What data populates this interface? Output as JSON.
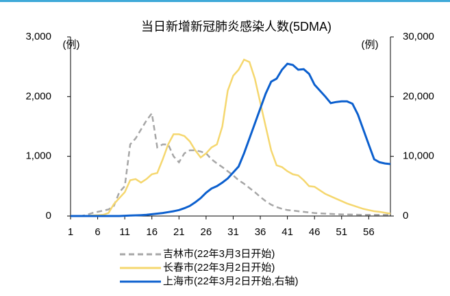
{
  "chart_data": {
    "type": "line",
    "title": "当日新增新冠肺炎感染人数(5DMA)",
    "y_unit": "(例)",
    "y2_unit": "(例)",
    "x": [
      1,
      2,
      3,
      4,
      5,
      6,
      7,
      8,
      9,
      10,
      11,
      12,
      13,
      14,
      15,
      16,
      17,
      18,
      19,
      20,
      21,
      22,
      23,
      24,
      25,
      26,
      27,
      28,
      29,
      30,
      31,
      32,
      33,
      34,
      35,
      36,
      37,
      38,
      39,
      40,
      41,
      42,
      43,
      44,
      45,
      46,
      47,
      48,
      49,
      50,
      51,
      52,
      53,
      54,
      55,
      56,
      57,
      58,
      59,
      60
    ],
    "xlim": [
      1,
      60
    ],
    "xticks": [
      1,
      6,
      11,
      16,
      21,
      26,
      31,
      36,
      41,
      46,
      51,
      56
    ],
    "ylim": [
      0,
      3000
    ],
    "yticks": [
      0,
      {
        "value": 1000,
        "label": "1,000"
      },
      {
        "value": 2000,
        "label": "2,000"
      },
      {
        "value": 3000,
        "label": "3,000"
      }
    ],
    "y2lim": [
      0,
      30000
    ],
    "y2ticks": [
      0,
      {
        "value": 10000,
        "label": "10,000"
      },
      {
        "value": 20000,
        "label": "20,000"
      },
      {
        "value": 30000,
        "label": "30,000"
      }
    ],
    "series": [
      {
        "name": "吉林市(22年3月3日开始)",
        "color": "#a6a6a6",
        "dash": true,
        "values": [
          0,
          0,
          0,
          20,
          50,
          70,
          90,
          110,
          170,
          400,
          500,
          1200,
          1300,
          1450,
          1600,
          1720,
          1150,
          1200,
          1200,
          1000,
          900,
          1050,
          1100,
          1100,
          1080,
          1050,
          950,
          880,
          820,
          750,
          680,
          600,
          540,
          470,
          400,
          320,
          250,
          190,
          150,
          120,
          100,
          90,
          80,
          70,
          60,
          50,
          45,
          40,
          35,
          30,
          28,
          26,
          24,
          22,
          20,
          20,
          20,
          20,
          20,
          20
        ]
      },
      {
        "name": "长春市(22年3月2日开始)",
        "color": "#f5d76e",
        "dash": false,
        "values": [
          0,
          0,
          0,
          0,
          10,
          15,
          20,
          50,
          200,
          300,
          400,
          600,
          620,
          560,
          620,
          700,
          720,
          950,
          1200,
          1370,
          1370,
          1340,
          1250,
          1100,
          980,
          1050,
          1150,
          1200,
          1500,
          2100,
          2350,
          2450,
          2620,
          2580,
          2300,
          1900,
          1500,
          1100,
          850,
          820,
          750,
          700,
          680,
          600,
          500,
          490,
          430,
          370,
          330,
          290,
          250,
          210,
          180,
          150,
          120,
          100,
          80,
          70,
          55,
          40
        ]
      },
      {
        "name": "上海市(22年3月2日开始,右轴)",
        "color": "#0b5fce",
        "dash": false,
        "axis": "y2",
        "values": [
          0,
          0,
          0,
          0,
          0,
          0,
          0,
          0,
          0,
          0,
          50,
          80,
          120,
          150,
          200,
          300,
          400,
          500,
          650,
          800,
          1000,
          1300,
          1700,
          2300,
          3000,
          3900,
          4600,
          5000,
          5600,
          6300,
          7300,
          8300,
          10500,
          13000,
          15500,
          18000,
          20500,
          22500,
          23000,
          24500,
          25500,
          25300,
          24500,
          24600,
          23800,
          22000,
          21000,
          20000,
          18900,
          19100,
          19200,
          19200,
          18800,
          17000,
          14500,
          12000,
          9500,
          9000,
          8800,
          8700
        ]
      }
    ]
  }
}
